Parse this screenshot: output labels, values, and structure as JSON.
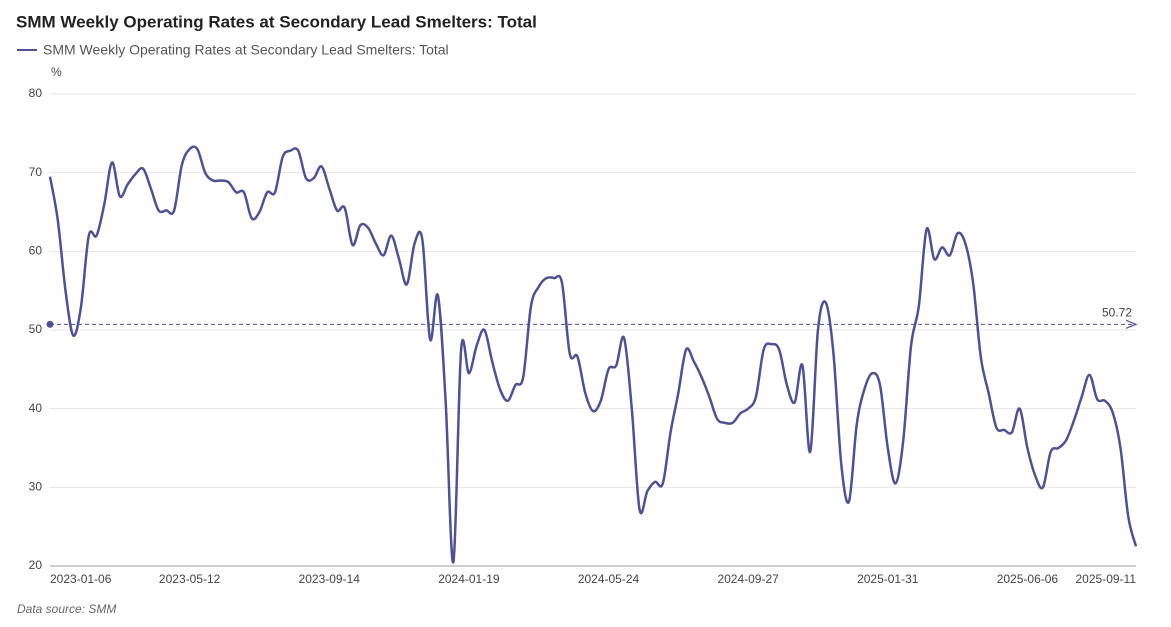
{
  "chart_data": {
    "type": "line",
    "title": "SMM Weekly Operating Rates at Secondary Lead Smelters: Total",
    "y_unit": "%",
    "source": "Data source:  SMM",
    "categories": [
      "2023-01-06",
      null,
      null,
      null,
      null,
      null,
      null,
      null,
      null,
      null,
      null,
      null,
      null,
      null,
      null,
      null,
      null,
      null,
      "2023-05-12",
      null,
      null,
      null,
      null,
      null,
      null,
      null,
      null,
      null,
      null,
      null,
      null,
      null,
      null,
      null,
      null,
      null,
      "2023-09-14",
      null,
      null,
      null,
      null,
      null,
      null,
      null,
      null,
      null,
      null,
      null,
      null,
      null,
      null,
      null,
      null,
      null,
      "2024-01-19",
      null,
      null,
      null,
      null,
      null,
      null,
      null,
      null,
      null,
      null,
      null,
      null,
      null,
      null,
      null,
      null,
      null,
      "2024-05-24",
      null,
      null,
      null,
      null,
      null,
      null,
      null,
      null,
      null,
      null,
      null,
      null,
      null,
      null,
      null,
      null,
      null,
      "2024-09-27",
      null,
      null,
      null,
      null,
      null,
      null,
      null,
      null,
      null,
      null,
      null,
      null,
      null,
      null,
      null,
      null,
      null,
      "2025-01-31",
      null,
      null,
      null,
      null,
      null,
      null,
      null,
      null,
      null,
      null,
      null,
      null,
      null,
      null,
      null,
      null,
      null,
      "2025-06-06",
      null,
      null,
      null,
      null,
      null,
      null,
      null,
      null,
      null,
      null,
      null,
      null,
      null,
      "2025-09-11"
    ],
    "series": [
      {
        "name": "SMM Weekly Operating Rates at Secondary Lead Smelters: Total",
        "color": "#4f5290",
        "values": [
          69.5,
          64,
          55,
          49.3,
          53,
          62,
          62,
          66,
          71.3,
          67,
          68.5,
          69.8,
          70.5,
          68,
          65.2,
          65.2,
          65.2,
          71,
          73,
          73,
          70,
          69,
          69,
          68.8,
          67.5,
          67.5,
          64.2,
          65,
          67.5,
          67.5,
          72,
          72.8,
          72.8,
          69.3,
          69.3,
          70.8,
          68,
          65.2,
          65.5,
          60.8,
          63.3,
          63,
          61,
          59.5,
          62,
          59,
          55.8,
          61,
          61.5,
          48.8,
          54.4,
          41,
          20.5,
          47.5,
          44.5,
          48,
          50,
          46,
          42.5,
          41,
          43,
          44,
          53,
          55.5,
          56.6,
          56.6,
          56,
          47,
          46.6,
          42,
          39.7,
          41,
          45,
          45.5,
          49,
          40,
          27.2,
          29.5,
          30.7,
          30.5,
          37,
          42,
          47.5,
          46,
          44,
          41.5,
          38.7,
          38.2,
          38.2,
          39.4,
          40,
          41.5,
          47.5,
          48.2,
          47.5,
          43,
          40.8,
          45.5,
          34.5,
          50,
          53.5,
          47,
          33,
          28.2,
          38,
          42.5,
          44.5,
          43,
          35,
          30.5,
          36,
          48,
          53,
          62.8,
          59,
          60.5,
          59.5,
          62.3,
          61,
          56,
          46.5,
          42,
          37.6,
          37.3,
          37,
          40,
          35,
          31.5,
          30,
          34.5,
          35,
          36,
          38.5,
          41.5,
          44.3,
          41.2,
          41,
          39.5,
          35,
          26.3,
          22.5
        ]
      }
    ],
    "average": 50.72,
    "ylim": [
      20,
      80
    ],
    "yticks": [
      20,
      30,
      40,
      50,
      60,
      70,
      80
    ],
    "grid": true
  }
}
